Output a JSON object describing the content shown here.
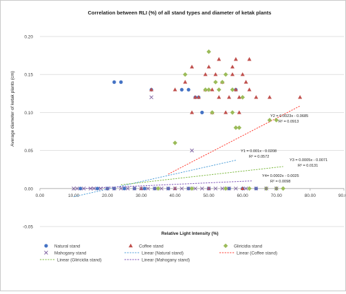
{
  "chart_data": {
    "type": "scatter",
    "title": "Correlation between RLI (%) of all stand types and diameter of ketak plants",
    "xlabel": "Relative Light Intensity (%)",
    "ylabel": "Average diameter of ketak plants (cm)",
    "xlim": [
      0,
      90
    ],
    "ylim": [
      -0.05,
      0.2
    ],
    "x_ticks": [
      "0.00",
      "10.00",
      "20.00",
      "30.00",
      "40.00",
      "50.00",
      "60.00",
      "70.00",
      "80.00",
      "90.00"
    ],
    "y_ticks": [
      "-0.05",
      "0.00",
      "0.05",
      "0.10",
      "0.15",
      "0.20"
    ],
    "grid": "horizontal",
    "legend_position": "bottom",
    "series": [
      {
        "name": "Natural stand",
        "marker": "circle",
        "color": "#4472C4",
        "points": [
          [
            22,
            0.14
          ],
          [
            24,
            0.14
          ],
          [
            33,
            0.13
          ],
          [
            42,
            0.13
          ],
          [
            44,
            0.13
          ],
          [
            46,
            0.12
          ],
          [
            47,
            0.12
          ],
          [
            48,
            0.1
          ],
          [
            58,
            0.13
          ],
          [
            12,
            0
          ],
          [
            17,
            0
          ],
          [
            20,
            0
          ],
          [
            22,
            0
          ],
          [
            25,
            0
          ],
          [
            28,
            0
          ],
          [
            31,
            0
          ],
          [
            34,
            0
          ],
          [
            38,
            0
          ],
          [
            44,
            0
          ],
          [
            50,
            0
          ],
          [
            56,
            0
          ],
          [
            60,
            0
          ],
          [
            64,
            0
          ]
        ]
      },
      {
        "name": "Coffee stand",
        "marker": "triangle",
        "color": "#C0504D",
        "points": [
          [
            33,
            0.13
          ],
          [
            40,
            0.13
          ],
          [
            43,
            0.14
          ],
          [
            45,
            0.16
          ],
          [
            45,
            0.1
          ],
          [
            46,
            0.12
          ],
          [
            47,
            0.12
          ],
          [
            49,
            0.13
          ],
          [
            49,
            0.15
          ],
          [
            50,
            0.16
          ],
          [
            51,
            0.1
          ],
          [
            51,
            0.13
          ],
          [
            52,
            0.15
          ],
          [
            53,
            0.12
          ],
          [
            53,
            0.17
          ],
          [
            54,
            0.14
          ],
          [
            55,
            0.1
          ],
          [
            56,
            0.12
          ],
          [
            57,
            0.15
          ],
          [
            57,
            0.16
          ],
          [
            58,
            0.13
          ],
          [
            58,
            0.17
          ],
          [
            59,
            0.12
          ],
          [
            59,
            0.1
          ],
          [
            60,
            0.15
          ],
          [
            61,
            0.14
          ],
          [
            62,
            0.13
          ],
          [
            62,
            0.17
          ],
          [
            64,
            0.12
          ],
          [
            68,
            0.12
          ],
          [
            77,
            0.12
          ],
          [
            30,
            0
          ],
          [
            40,
            0
          ],
          [
            50,
            0
          ],
          [
            60,
            0
          ]
        ]
      },
      {
        "name": "Gliricidia stand",
        "marker": "diamond",
        "color": "#9BBB59",
        "points": [
          [
            40,
            0.06
          ],
          [
            43,
            0.15
          ],
          [
            49,
            0.13
          ],
          [
            50,
            0.18
          ],
          [
            50,
            0.13
          ],
          [
            51,
            0.1
          ],
          [
            52,
            0.14
          ],
          [
            53,
            0.13
          ],
          [
            54,
            0.14
          ],
          [
            55,
            0.15
          ],
          [
            57,
            0.13
          ],
          [
            57,
            0.1
          ],
          [
            58,
            0.08
          ],
          [
            59,
            0.08
          ],
          [
            60,
            0.12
          ],
          [
            68,
            0.09
          ],
          [
            70,
            0.09
          ],
          [
            35,
            0
          ],
          [
            45,
            0
          ],
          [
            55,
            0
          ],
          [
            62,
            0
          ],
          [
            67,
            0
          ],
          [
            70,
            0
          ],
          [
            72,
            0
          ]
        ]
      },
      {
        "name": "Mahogany stand",
        "marker": "x",
        "color": "#8064A2",
        "points": [
          [
            33,
            0.12
          ],
          [
            45,
            0.05
          ],
          [
            10,
            0
          ],
          [
            11,
            0
          ],
          [
            13,
            0
          ],
          [
            15,
            0
          ],
          [
            16,
            0
          ],
          [
            18,
            0
          ],
          [
            20,
            0
          ],
          [
            22,
            0
          ],
          [
            24,
            0
          ],
          [
            26,
            0
          ],
          [
            28,
            0
          ],
          [
            30,
            0
          ],
          [
            32,
            0
          ],
          [
            34,
            0
          ],
          [
            36,
            0
          ],
          [
            38,
            0
          ],
          [
            40,
            0
          ],
          [
            42,
            0
          ],
          [
            44,
            0
          ],
          [
            46,
            0
          ],
          [
            48,
            0
          ],
          [
            50,
            0
          ],
          [
            52,
            0
          ],
          [
            54,
            0
          ],
          [
            56,
            0
          ],
          [
            58,
            0
          ],
          [
            61,
            0
          ],
          [
            64,
            0
          ],
          [
            67,
            0
          ],
          [
            70,
            0
          ]
        ]
      }
    ],
    "trendlines": [
      {
        "name": "Linear (Natural stand)",
        "color": "#4F9FD9",
        "slope": 0.001,
        "intercept": -0.0208,
        "x_range": [
          10,
          58
        ],
        "equation": "Y1 = 0.001x - 0.0208",
        "r2": "R² = 0.0572"
      },
      {
        "name": "Linear (Coffee stand)",
        "color": "#FF3B30",
        "slope": 0.0023,
        "intercept": -0.0685,
        "x_range": [
          38,
          77
        ],
        "equation": "Y2 = 0.0023x - 0.0685",
        "r2": "R² = 0.0913"
      },
      {
        "name": "Linear (Gliricidia stand)",
        "color": "#7DB940",
        "slope": 0.0005,
        "intercept": -0.0071,
        "x_range": [
          24,
          72
        ],
        "equation": "Y3 = 0.0005x - 0.0071",
        "r2": "R² = 0.0131"
      },
      {
        "name": "Linear (Mahogany stand)",
        "color": "#7A4FB5",
        "slope": 0.0002,
        "intercept": -0.0025,
        "x_range": [
          12,
          63
        ],
        "equation": "Y4= 0.0002x - 0.0025",
        "r2": "R² = 0.0098"
      }
    ],
    "legend": [
      {
        "label": "Natural stand",
        "kind": "marker",
        "marker": "circle",
        "color": "#4472C4"
      },
      {
        "label": "Coffee stand",
        "kind": "marker",
        "marker": "triangle",
        "color": "#C0504D"
      },
      {
        "label": "Gliricidia stand",
        "kind": "marker",
        "marker": "diamond",
        "color": "#9BBB59"
      },
      {
        "label": "Mahogany stand",
        "kind": "marker",
        "marker": "x",
        "color": "#8064A2"
      },
      {
        "label": "Linear (Natural stand)",
        "kind": "line",
        "color": "#4F9FD9"
      },
      {
        "label": "Linear (Coffee stand)",
        "kind": "line",
        "color": "#FF3B30"
      },
      {
        "label": "Linear (Gliricidia stand)",
        "kind": "line",
        "color": "#7DB940"
      },
      {
        "label": "Linear (Mahogany stand)",
        "kind": "line",
        "color": "#7A4FB5"
      }
    ]
  }
}
